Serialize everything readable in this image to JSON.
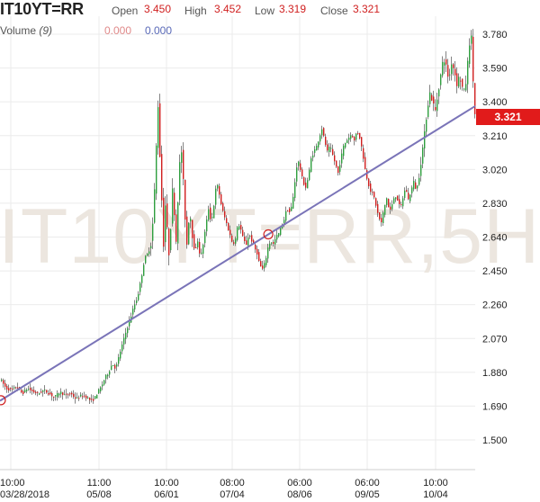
{
  "header": {
    "symbol": "IT10YT=RR",
    "open_label": "Open",
    "open_value": "3.450",
    "high_label": "High",
    "high_value": "3.452",
    "low_label": "Low",
    "low_value": "3.319",
    "close_label": "Close",
    "close_value": "3.321",
    "volume_label": "Volume",
    "volume_period": "(9)",
    "volume_value_1": "0.000",
    "volume_value_2": "0.000"
  },
  "chart_data": {
    "type": "candlestick",
    "watermark": "IT10YT=RR,5H",
    "y_ticks": [
      "3.780",
      "3.590",
      "3.400",
      "3.210",
      "3.020",
      "2.830",
      "2.640",
      "2.450",
      "2.260",
      "2.070",
      "1.880",
      "1.690",
      "1.500"
    ],
    "ylim": [
      1.42,
      3.85
    ],
    "x_ticks": [
      {
        "time": "10:00",
        "date": "03/28/2018"
      },
      {
        "time": "11:00",
        "date": "05/08"
      },
      {
        "time": "10:00",
        "date": "06/01"
      },
      {
        "time": "08:00",
        "date": "07/04"
      },
      {
        "time": "06:00",
        "date": "08/06"
      },
      {
        "time": "06:00",
        "date": "09/05"
      },
      {
        "time": "10:00",
        "date": "10/04"
      }
    ],
    "last_price": "3.321",
    "trendline": {
      "from": 1.72,
      "to": 3.376
    },
    "trendline_markers": [
      1.723,
      2.655
    ],
    "colors": {
      "up": "#2e9e3e",
      "down": "#d01f1f",
      "trendline": "#7a74b8",
      "grid": "#ebebeb",
      "last_box": "#e11b1b"
    },
    "price_path": [
      [
        0,
        1.84
      ],
      [
        6,
        1.79
      ],
      [
        12,
        1.78
      ],
      [
        18,
        1.8
      ],
      [
        24,
        1.76
      ],
      [
        30,
        1.79
      ],
      [
        36,
        1.77
      ],
      [
        42,
        1.76
      ],
      [
        48,
        1.78
      ],
      [
        54,
        1.76
      ],
      [
        60,
        1.74
      ],
      [
        66,
        1.77
      ],
      [
        72,
        1.75
      ],
      [
        78,
        1.76
      ],
      [
        84,
        1.73
      ],
      [
        90,
        1.75
      ],
      [
        96,
        1.74
      ],
      [
        100,
        1.72
      ],
      [
        104,
        1.73
      ],
      [
        108,
        1.77
      ],
      [
        112,
        1.8
      ],
      [
        116,
        1.85
      ],
      [
        120,
        1.88
      ],
      [
        124,
        1.93
      ],
      [
        128,
        1.9
      ],
      [
        132,
        1.98
      ],
      [
        136,
        2.05
      ],
      [
        140,
        2.12
      ],
      [
        144,
        2.18
      ],
      [
        148,
        2.25
      ],
      [
        152,
        2.3
      ],
      [
        156,
        2.4
      ],
      [
        160,
        2.52
      ],
      [
        164,
        2.55
      ],
      [
        168,
        2.62
      ],
      [
        171,
        2.9
      ],
      [
        173,
        3.15
      ],
      [
        175,
        3.38
      ],
      [
        177,
        3.1
      ],
      [
        179,
        2.85
      ],
      [
        181,
        2.6
      ],
      [
        183,
        2.82
      ],
      [
        185,
        2.68
      ],
      [
        187,
        2.55
      ],
      [
        189,
        2.7
      ],
      [
        191,
        2.9
      ],
      [
        193,
        2.78
      ],
      [
        195,
        2.62
      ],
      [
        197,
        2.85
      ],
      [
        199,
        3.05
      ],
      [
        201,
        3.12
      ],
      [
        203,
        2.95
      ],
      [
        205,
        2.75
      ],
      [
        207,
        2.6
      ],
      [
        210,
        2.8
      ],
      [
        213,
        2.65
      ],
      [
        216,
        2.55
      ],
      [
        219,
        2.62
      ],
      [
        222,
        2.52
      ],
      [
        225,
        2.6
      ],
      [
        228,
        2.7
      ],
      [
        231,
        2.8
      ],
      [
        234,
        2.72
      ],
      [
        237,
        2.82
      ],
      [
        240,
        2.95
      ],
      [
        243,
        2.88
      ],
      [
        246,
        2.8
      ],
      [
        249,
        2.75
      ],
      [
        252,
        2.7
      ],
      [
        255,
        2.65
      ],
      [
        258,
        2.6
      ],
      [
        261,
        2.63
      ],
      [
        264,
        2.72
      ],
      [
        267,
        2.68
      ],
      [
        270,
        2.62
      ],
      [
        273,
        2.6
      ],
      [
        276,
        2.66
      ],
      [
        279,
        2.62
      ],
      [
        282,
        2.58
      ],
      [
        285,
        2.55
      ],
      [
        288,
        2.48
      ],
      [
        291,
        2.46
      ],
      [
        294,
        2.5
      ],
      [
        297,
        2.58
      ],
      [
        300,
        2.62
      ],
      [
        303,
        2.6
      ],
      [
        306,
        2.64
      ],
      [
        309,
        2.66
      ],
      [
        312,
        2.7
      ],
      [
        315,
        2.74
      ],
      [
        318,
        2.8
      ],
      [
        321,
        2.78
      ],
      [
        324,
        2.82
      ],
      [
        327,
        2.95
      ],
      [
        330,
        3.08
      ],
      [
        333,
        3.02
      ],
      [
        336,
        2.95
      ],
      [
        339,
        2.92
      ],
      [
        342,
        2.98
      ],
      [
        345,
        3.08
      ],
      [
        348,
        3.12
      ],
      [
        351,
        3.15
      ],
      [
        354,
        3.2
      ],
      [
        357,
        3.25
      ],
      [
        360,
        3.18
      ],
      [
        363,
        3.12
      ],
      [
        366,
        3.15
      ],
      [
        369,
        3.1
      ],
      [
        372,
        3.05
      ],
      [
        375,
        3.0
      ],
      [
        378,
        3.08
      ],
      [
        381,
        3.15
      ],
      [
        384,
        3.18
      ],
      [
        387,
        3.2
      ],
      [
        390,
        3.22
      ],
      [
        393,
        3.18
      ],
      [
        396,
        3.24
      ],
      [
        399,
        3.2
      ],
      [
        402,
        3.12
      ],
      [
        405,
        3.02
      ],
      [
        408,
        2.95
      ],
      [
        411,
        2.9
      ],
      [
        414,
        2.88
      ],
      [
        417,
        2.82
      ],
      [
        420,
        2.75
      ],
      [
        423,
        2.72
      ],
      [
        426,
        2.8
      ],
      [
        429,
        2.86
      ],
      [
        432,
        2.78
      ],
      [
        435,
        2.82
      ],
      [
        438,
        2.88
      ],
      [
        441,
        2.85
      ],
      [
        444,
        2.8
      ],
      [
        447,
        2.86
      ],
      [
        450,
        2.92
      ],
      [
        453,
        2.85
      ],
      [
        456,
        2.9
      ],
      [
        459,
        2.95
      ],
      [
        462,
        2.9
      ],
      [
        465,
        2.98
      ],
      [
        468,
        3.1
      ],
      [
        471,
        3.22
      ],
      [
        474,
        3.36
      ],
      [
        477,
        3.45
      ],
      [
        480,
        3.4
      ],
      [
        483,
        3.35
      ],
      [
        486,
        3.45
      ],
      [
        489,
        3.55
      ],
      [
        492,
        3.65
      ],
      [
        495,
        3.6
      ],
      [
        498,
        3.52
      ],
      [
        501,
        3.62
      ],
      [
        504,
        3.58
      ],
      [
        507,
        3.5
      ],
      [
        510,
        3.55
      ],
      [
        513,
        3.48
      ],
      [
        516,
        3.45
      ],
      [
        519,
        3.62
      ],
      [
        521,
        3.73
      ],
      [
        523,
        3.76
      ],
      [
        525,
        3.52
      ],
      [
        527,
        3.33
      ]
    ]
  }
}
